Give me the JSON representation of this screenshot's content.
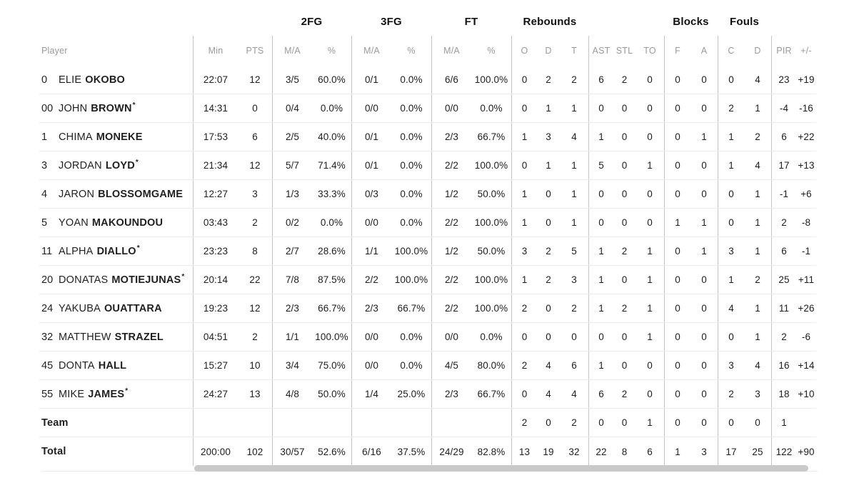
{
  "table": {
    "groups": {
      "fg2": "2FG",
      "fg3": "3FG",
      "ft": "FT",
      "rebounds": "Rebounds",
      "blocks": "Blocks",
      "fouls": "Fouls"
    },
    "columns": {
      "player": "Player",
      "min": "Min",
      "pts": "PTS",
      "ma": "M/A",
      "pct": "%",
      "o": "O",
      "d": "D",
      "t": "T",
      "ast": "AST",
      "stl": "STL",
      "to": "TO",
      "f": "F",
      "a": "A",
      "c": "C",
      "pir": "PIR",
      "plusminus": "+/-"
    },
    "starter_mark": "*",
    "rows": [
      {
        "number": "0",
        "first": "ELIE",
        "last": "OKOBO",
        "starter": false,
        "stats": [
          "22:07",
          "12",
          "3/5",
          "60.0%",
          "0/1",
          "0.0%",
          "6/6",
          "100.0%",
          "0",
          "2",
          "2",
          "6",
          "2",
          "0",
          "0",
          "0",
          "0",
          "4",
          "23",
          "+19"
        ]
      },
      {
        "number": "00",
        "first": "JOHN",
        "last": "BROWN",
        "starter": true,
        "stats": [
          "14:31",
          "0",
          "0/4",
          "0.0%",
          "0/0",
          "0.0%",
          "0/0",
          "0.0%",
          "0",
          "1",
          "1",
          "0",
          "0",
          "0",
          "0",
          "0",
          "2",
          "1",
          "-4",
          "-16"
        ]
      },
      {
        "number": "1",
        "first": "CHIMA",
        "last": "MONEKE",
        "starter": false,
        "stats": [
          "17:53",
          "6",
          "2/5",
          "40.0%",
          "0/1",
          "0.0%",
          "2/3",
          "66.7%",
          "1",
          "3",
          "4",
          "1",
          "0",
          "0",
          "0",
          "1",
          "1",
          "2",
          "6",
          "+22"
        ]
      },
      {
        "number": "3",
        "first": "JORDAN",
        "last": "LOYD",
        "starter": true,
        "stats": [
          "21:34",
          "12",
          "5/7",
          "71.4%",
          "0/1",
          "0.0%",
          "2/2",
          "100.0%",
          "0",
          "1",
          "1",
          "5",
          "0",
          "1",
          "0",
          "0",
          "1",
          "4",
          "17",
          "+13"
        ]
      },
      {
        "number": "4",
        "first": "JARON",
        "last": "BLOSSOMGAME",
        "starter": false,
        "stats": [
          "12:27",
          "3",
          "1/3",
          "33.3%",
          "0/3",
          "0.0%",
          "1/2",
          "50.0%",
          "1",
          "0",
          "1",
          "0",
          "0",
          "0",
          "0",
          "0",
          "0",
          "1",
          "-1",
          "+6"
        ]
      },
      {
        "number": "5",
        "first": "YOAN",
        "last": "MAKOUNDOU",
        "starter": false,
        "stats": [
          "03:43",
          "2",
          "0/2",
          "0.0%",
          "0/0",
          "0.0%",
          "2/2",
          "100.0%",
          "1",
          "0",
          "1",
          "0",
          "0",
          "0",
          "1",
          "1",
          "0",
          "1",
          "2",
          "-8"
        ]
      },
      {
        "number": "11",
        "first": "ALPHA",
        "last": "DIALLO",
        "starter": true,
        "stats": [
          "23:23",
          "8",
          "2/7",
          "28.6%",
          "1/1",
          "100.0%",
          "1/2",
          "50.0%",
          "3",
          "2",
          "5",
          "1",
          "2",
          "1",
          "0",
          "1",
          "3",
          "1",
          "6",
          "-1"
        ]
      },
      {
        "number": "20",
        "first": "DONATAS",
        "last": "MOTIEJUNAS",
        "starter": true,
        "stats": [
          "20:14",
          "22",
          "7/8",
          "87.5%",
          "2/2",
          "100.0%",
          "2/2",
          "100.0%",
          "1",
          "2",
          "3",
          "1",
          "0",
          "1",
          "0",
          "0",
          "1",
          "2",
          "25",
          "+11"
        ]
      },
      {
        "number": "24",
        "first": "YAKUBA",
        "last": "OUATTARA",
        "starter": false,
        "stats": [
          "19:23",
          "12",
          "2/3",
          "66.7%",
          "2/3",
          "66.7%",
          "2/2",
          "100.0%",
          "2",
          "0",
          "2",
          "1",
          "2",
          "1",
          "0",
          "0",
          "4",
          "1",
          "11",
          "+26"
        ]
      },
      {
        "number": "32",
        "first": "MATTHEW",
        "last": "STRAZEL",
        "starter": false,
        "stats": [
          "04:51",
          "2",
          "1/1",
          "100.0%",
          "0/0",
          "0.0%",
          "0/0",
          "0.0%",
          "0",
          "0",
          "0",
          "0",
          "0",
          "1",
          "0",
          "0",
          "0",
          "1",
          "2",
          "-6"
        ]
      },
      {
        "number": "45",
        "first": "DONTA",
        "last": "HALL",
        "starter": false,
        "stats": [
          "15:27",
          "10",
          "3/4",
          "75.0%",
          "0/0",
          "0.0%",
          "4/5",
          "80.0%",
          "2",
          "4",
          "6",
          "1",
          "0",
          "0",
          "0",
          "0",
          "3",
          "4",
          "16",
          "+14"
        ]
      },
      {
        "number": "55",
        "first": "MIKE",
        "last": "JAMES",
        "starter": true,
        "stats": [
          "24:27",
          "13",
          "4/8",
          "50.0%",
          "1/4",
          "25.0%",
          "2/3",
          "66.7%",
          "0",
          "4",
          "4",
          "6",
          "2",
          "0",
          "0",
          "0",
          "2",
          "3",
          "18",
          "+10"
        ]
      },
      {
        "number": "",
        "first": "",
        "last": "Team",
        "starter": false,
        "stats": [
          "",
          "",
          "",
          "",
          "",
          "",
          "",
          "",
          "2",
          "0",
          "2",
          "0",
          "0",
          "1",
          "0",
          "0",
          "0",
          "0",
          "1",
          ""
        ]
      },
      {
        "number": "",
        "first": "",
        "last": "Total",
        "starter": false,
        "stats": [
          "200:00",
          "102",
          "30/57",
          "52.6%",
          "6/16",
          "37.5%",
          "24/29",
          "82.8%",
          "13",
          "19",
          "32",
          "22",
          "8",
          "6",
          "1",
          "3",
          "17",
          "25",
          "122",
          "+90"
        ]
      }
    ]
  },
  "colors": {
    "divider": "#c4c4c4",
    "row_separator": "#ededed",
    "header_text": "#999999",
    "body_text": "#1d1d1d",
    "scrollbar_thumb": "#c9c9c9"
  }
}
